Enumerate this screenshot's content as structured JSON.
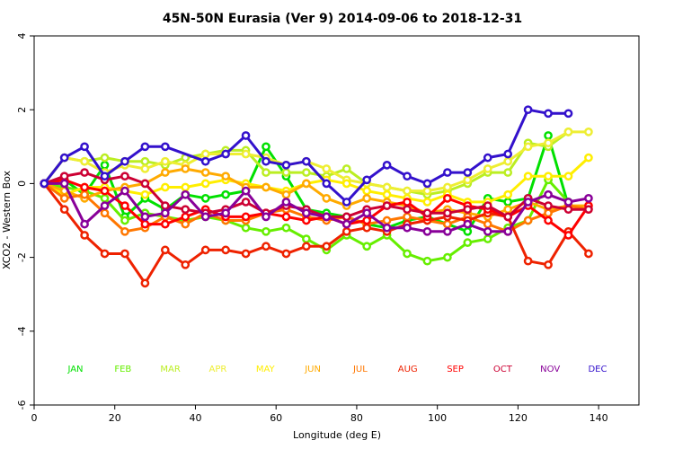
{
  "chart_data": {
    "type": "line",
    "title": "45N-50N Eurasia (Ver 9)   2014-09-06 to 2018-12-31",
    "xlabel": "Longitude (deg E)",
    "ylabel": "XCO2 - Western Box",
    "xlim": [
      0,
      150
    ],
    "ylim": [
      -6,
      4
    ],
    "xticks": [
      0,
      20,
      40,
      60,
      80,
      100,
      120,
      140
    ],
    "yticks": [
      -6,
      -4,
      -2,
      0,
      2,
      4
    ],
    "legend_placement": "bottom, inside plot",
    "series": [
      {
        "name": "JAN",
        "color": "#00e000",
        "x": [
          2.5,
          7.5,
          12.5,
          17.5,
          22.5,
          27.5,
          32.5,
          37.5,
          42.5,
          47.5,
          52.5,
          57.5,
          62.5,
          67.5,
          72.5,
          77.5,
          82.5,
          87.5,
          92.5,
          97.5,
          102.5,
          107.5,
          112.5,
          117.5,
          122.5,
          127.5,
          132.5
        ],
        "y": [
          0.0,
          0.1,
          -0.3,
          0.5,
          -0.9,
          -0.4,
          -0.7,
          -0.3,
          -0.4,
          -0.3,
          -0.2,
          1.0,
          0.2,
          -0.7,
          -0.8,
          -0.9,
          -1.1,
          -1.2,
          -1.0,
          -0.9,
          -1.1,
          -1.3,
          -0.4,
          -0.5,
          -0.4,
          1.3,
          -0.6
        ]
      },
      {
        "name": "FEB",
        "color": "#66ee00",
        "x": [
          2.5,
          7.5,
          12.5,
          17.5,
          22.5,
          27.5,
          32.5,
          37.5,
          42.5,
          47.5,
          52.5,
          57.5,
          62.5,
          67.5,
          72.5,
          77.5,
          82.5,
          87.5,
          92.5,
          97.5,
          102.5,
          107.5,
          112.5,
          117.5,
          122.5,
          127.5,
          132.5
        ],
        "y": [
          0.0,
          -0.1,
          -0.2,
          -0.4,
          -1.0,
          -0.8,
          -0.9,
          -1.0,
          -0.9,
          -1.0,
          -1.2,
          -1.3,
          -1.2,
          -1.5,
          -1.8,
          -1.4,
          -1.7,
          -1.4,
          -1.9,
          -2.1,
          -2.0,
          -1.6,
          -1.5,
          -1.2,
          -1.0,
          0.1,
          -0.5
        ]
      },
      {
        "name": "MAR",
        "color": "#bbee22",
        "x": [
          2.5,
          7.5,
          12.5,
          17.5,
          22.5,
          27.5,
          32.5,
          37.5,
          42.5,
          47.5,
          52.5,
          57.5,
          62.5,
          67.5,
          72.5,
          77.5,
          82.5,
          87.5,
          92.5,
          97.5,
          102.5,
          107.5,
          112.5,
          117.5,
          122.5,
          127.5,
          132.5
        ],
        "y": [
          0.0,
          0.7,
          0.6,
          0.7,
          0.6,
          0.6,
          0.5,
          0.7,
          0.8,
          0.9,
          0.9,
          0.3,
          0.3,
          0.3,
          0.2,
          0.4,
          0.0,
          -0.1,
          -0.2,
          -0.3,
          -0.2,
          0.0,
          0.3,
          0.3,
          1.1,
          1.0,
          1.4
        ]
      },
      {
        "name": "APR",
        "color": "#eeee33",
        "x": [
          2.5,
          7.5,
          12.5,
          17.5,
          22.5,
          27.5,
          32.5,
          37.5,
          42.5,
          47.5,
          52.5,
          57.5,
          62.5,
          67.5,
          72.5,
          77.5,
          82.5,
          87.5,
          92.5,
          97.5,
          102.5,
          107.5,
          112.5,
          117.5,
          122.5,
          127.5,
          132.5,
          137.5
        ],
        "y": [
          0.0,
          0.7,
          0.6,
          0.3,
          0.5,
          0.4,
          0.6,
          0.5,
          0.8,
          0.8,
          0.8,
          0.7,
          0.5,
          0.6,
          0.4,
          0.1,
          0.0,
          -0.1,
          -0.2,
          -0.2,
          -0.1,
          0.1,
          0.4,
          0.6,
          1.0,
          1.1,
          1.4,
          1.4
        ]
      },
      {
        "name": "MAY",
        "color": "#ffee00",
        "x": [
          2.5,
          7.5,
          12.5,
          17.5,
          22.5,
          27.5,
          32.5,
          37.5,
          42.5,
          47.5,
          52.5,
          57.5,
          62.5,
          67.5,
          72.5,
          77.5,
          82.5,
          87.5,
          92.5,
          97.5,
          102.5,
          107.5,
          112.5,
          117.5,
          122.5,
          127.5,
          132.5,
          137.5
        ],
        "y": [
          0.0,
          -0.3,
          -0.1,
          -0.1,
          -0.2,
          -0.3,
          -0.1,
          -0.1,
          0.0,
          0.1,
          0.0,
          -0.1,
          -0.2,
          0.0,
          0.1,
          0.0,
          -0.2,
          -0.3,
          -0.4,
          -0.5,
          -0.3,
          -0.5,
          -0.5,
          -0.3,
          0.2,
          0.2,
          0.2,
          0.7
        ]
      },
      {
        "name": "JUN",
        "color": "#ffaa00",
        "x": [
          2.5,
          7.5,
          12.5,
          17.5,
          22.5,
          27.5,
          32.5,
          37.5,
          42.5,
          47.5,
          52.5,
          57.5,
          62.5,
          67.5,
          72.5,
          77.5,
          82.5,
          87.5,
          92.5,
          97.5,
          102.5,
          107.5,
          112.5,
          117.5,
          122.5,
          127.5,
          132.5,
          137.5
        ],
        "y": [
          0.0,
          -0.2,
          -0.4,
          -0.2,
          -0.1,
          0.0,
          0.3,
          0.4,
          0.3,
          0.2,
          -0.1,
          -0.1,
          -0.3,
          0.0,
          -0.4,
          -0.6,
          -0.4,
          -0.5,
          -0.6,
          -0.8,
          -0.7,
          -0.8,
          -0.9,
          -0.7,
          -0.5,
          -0.7,
          -0.6,
          -0.6
        ]
      },
      {
        "name": "JUL",
        "color": "#ff7700",
        "x": [
          2.5,
          7.5,
          12.5,
          17.5,
          22.5,
          27.5,
          32.5,
          37.5,
          42.5,
          47.5,
          52.5,
          57.5,
          62.5,
          67.5,
          72.5,
          77.5,
          82.5,
          87.5,
          92.5,
          97.5,
          102.5,
          107.5,
          112.5,
          117.5,
          122.5,
          127.5,
          132.5,
          137.5
        ],
        "y": [
          0.0,
          -0.4,
          -0.3,
          -0.8,
          -1.3,
          -1.2,
          -0.9,
          -1.1,
          -0.8,
          -1.0,
          -1.0,
          -0.8,
          -0.7,
          -0.9,
          -1.0,
          -0.9,
          -1.1,
          -1.0,
          -0.9,
          -1.0,
          -1.1,
          -0.9,
          -1.1,
          -1.3,
          -1.0,
          -0.8,
          -0.6,
          -0.7
        ]
      },
      {
        "name": "AUG",
        "color": "#ee2200",
        "x": [
          2.5,
          7.5,
          12.5,
          17.5,
          22.5,
          27.5,
          32.5,
          37.5,
          42.5,
          47.5,
          52.5,
          57.5,
          62.5,
          67.5,
          72.5,
          77.5,
          82.5,
          87.5,
          92.5,
          97.5,
          102.5,
          107.5,
          112.5,
          117.5,
          122.5,
          127.5,
          132.5,
          137.5
        ],
        "y": [
          0.0,
          -0.7,
          -1.4,
          -1.9,
          -1.9,
          -2.7,
          -1.8,
          -2.2,
          -1.8,
          -1.8,
          -1.9,
          -1.7,
          -1.9,
          -1.7,
          -1.7,
          -1.3,
          -1.2,
          -1.3,
          -1.1,
          -1.0,
          -0.9,
          -1.0,
          -0.8,
          -0.9,
          -2.1,
          -2.2,
          -1.3,
          -1.9
        ]
      },
      {
        "name": "SEP",
        "color": "#ff0000",
        "x": [
          2.5,
          7.5,
          12.5,
          17.5,
          22.5,
          27.5,
          32.5,
          37.5,
          42.5,
          47.5,
          52.5,
          57.5,
          62.5,
          67.5,
          72.5,
          77.5,
          82.5,
          87.5,
          92.5,
          97.5,
          102.5,
          107.5,
          112.5,
          117.5,
          122.5,
          127.5,
          132.5,
          137.5
        ],
        "y": [
          0.0,
          0.1,
          -0.1,
          -0.2,
          -0.6,
          -1.1,
          -1.1,
          -0.9,
          -0.7,
          -0.9,
          -0.9,
          -0.8,
          -0.9,
          -1.0,
          -0.9,
          -1.1,
          -1.0,
          -0.6,
          -0.5,
          -0.9,
          -0.4,
          -0.6,
          -0.7,
          -0.9,
          -0.6,
          -1.0,
          -1.4,
          -0.6
        ]
      },
      {
        "name": "OCT",
        "color": "#cc0033",
        "x": [
          2.5,
          7.5,
          12.5,
          17.5,
          22.5,
          27.5,
          32.5,
          37.5,
          42.5,
          47.5,
          52.5,
          57.5,
          62.5,
          67.5,
          72.5,
          77.5,
          82.5,
          87.5,
          92.5,
          97.5,
          102.5,
          107.5,
          112.5,
          117.5,
          122.5,
          127.5,
          132.5,
          137.5
        ],
        "y": [
          0.0,
          0.2,
          0.3,
          0.1,
          0.2,
          0.0,
          -0.6,
          -0.7,
          -0.8,
          -0.7,
          -0.5,
          -0.8,
          -0.6,
          -0.7,
          -0.9,
          -0.9,
          -0.7,
          -0.6,
          -0.7,
          -0.8,
          -0.8,
          -0.7,
          -0.6,
          -0.9,
          -0.4,
          -0.6,
          -0.7,
          -0.7
        ]
      },
      {
        "name": "NOV",
        "color": "#880099",
        "x": [
          2.5,
          7.5,
          12.5,
          17.5,
          22.5,
          27.5,
          32.5,
          37.5,
          42.5,
          47.5,
          52.5,
          57.5,
          62.5,
          67.5,
          72.5,
          77.5,
          82.5,
          87.5,
          92.5,
          97.5,
          102.5,
          107.5,
          112.5,
          117.5,
          122.5,
          127.5,
          132.5,
          137.5
        ],
        "y": [
          0.0,
          0.0,
          -1.1,
          -0.6,
          -0.2,
          -0.9,
          -0.8,
          -0.3,
          -0.9,
          -0.8,
          -0.2,
          -0.9,
          -0.5,
          -0.8,
          -0.9,
          -1.1,
          -0.8,
          -1.2,
          -1.2,
          -1.3,
          -1.3,
          -1.1,
          -1.3,
          -1.3,
          -0.5,
          -0.3,
          -0.5,
          -0.4
        ]
      },
      {
        "name": "DEC",
        "color": "#3311cc",
        "x": [
          2.5,
          7.5,
          12.5,
          17.5,
          22.5,
          27.5,
          32.5,
          42.5,
          47.5,
          52.5,
          57.5,
          62.5,
          67.5,
          72.5,
          77.5,
          82.5,
          87.5,
          92.5,
          97.5,
          102.5,
          107.5,
          112.5,
          117.5,
          122.5,
          127.5,
          132.5
        ],
        "y": [
          0.0,
          0.7,
          1.0,
          0.2,
          0.6,
          1.0,
          1.0,
          0.6,
          0.8,
          1.3,
          0.6,
          0.5,
          0.6,
          0.0,
          -0.5,
          0.1,
          0.5,
          0.2,
          0.0,
          0.3,
          0.3,
          0.7,
          0.8,
          2.0,
          1.9,
          1.9
        ]
      }
    ]
  }
}
